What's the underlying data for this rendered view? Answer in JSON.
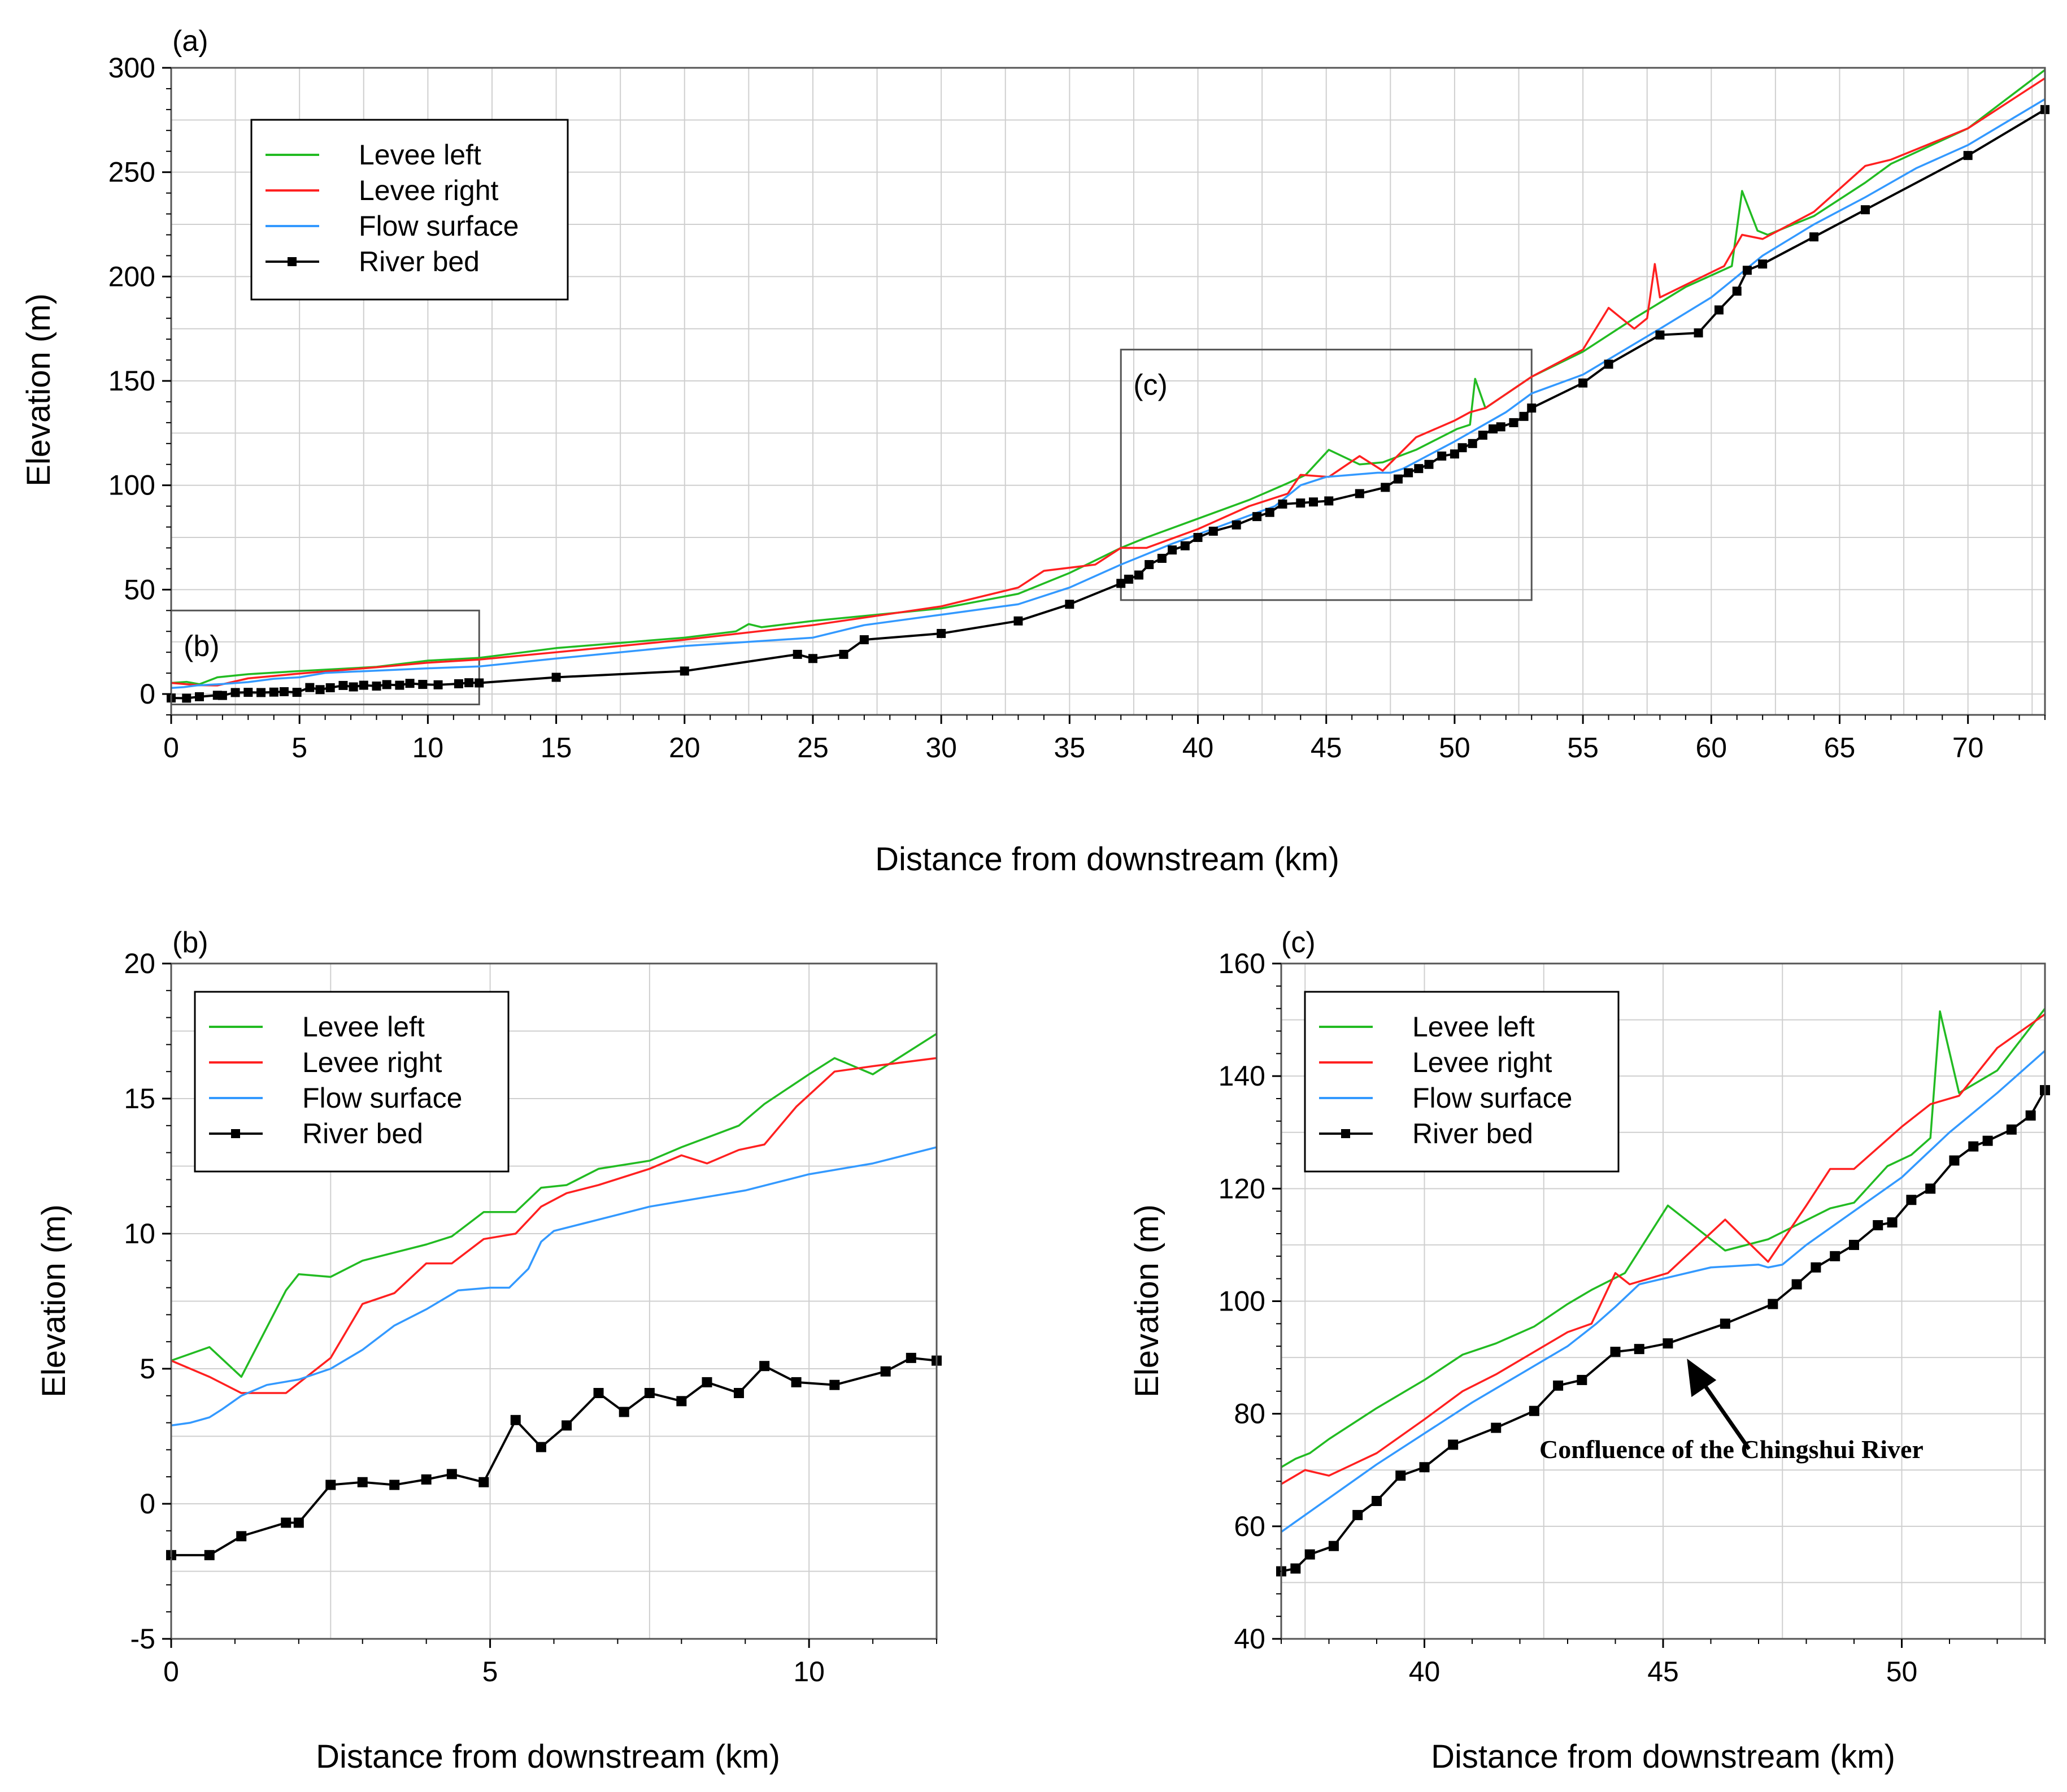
{
  "chart_data": [
    {
      "panel": "(a)",
      "type": "line",
      "xlabel": "Distance from downstream (km)",
      "ylabel": "Elevation (m)",
      "xlim": [
        0,
        73
      ],
      "ylim": [
        -10,
        300
      ],
      "xticks": [
        0,
        5,
        10,
        15,
        20,
        25,
        30,
        35,
        40,
        45,
        50,
        55,
        60,
        65,
        70
      ],
      "yticks": [
        0,
        50,
        100,
        150,
        200,
        250,
        300
      ],
      "grid": true,
      "legend_position": "top-left",
      "inset_boxes": [
        {
          "label": "(b)",
          "x_range": [
            0,
            12
          ],
          "y_range": [
            -5,
            40
          ]
        },
        {
          "label": "(c)",
          "x_range": [
            37,
            53
          ],
          "y_range": [
            45,
            165
          ]
        }
      ],
      "series": [
        {
          "name": "Levee left",
          "color": "#22bb22",
          "marker": "none",
          "x": [
            0,
            0.6,
            1.1,
            1.8,
            3,
            5,
            8,
            10,
            12,
            15,
            20,
            22,
            22.5,
            23,
            25,
            30,
            33,
            35,
            37,
            38,
            40,
            42,
            43.5,
            44.2,
            45.1,
            46.3,
            47.2,
            48.5,
            50.1,
            50.6,
            50.8,
            51.2,
            53,
            55,
            57,
            59,
            60.8,
            61.2,
            61.8,
            62.2,
            64,
            66,
            67,
            70,
            73
          ],
          "y": [
            5.3,
            5.8,
            4.7,
            8,
            9.5,
            11,
            13,
            16,
            17.3,
            22,
            27,
            30,
            33.5,
            32,
            35,
            41,
            48,
            58,
            70,
            75,
            84,
            93,
            101,
            105,
            117,
            110,
            111,
            117,
            127,
            129,
            151,
            137,
            152,
            164,
            180,
            195,
            205,
            241,
            222,
            220,
            229,
            245,
            254,
            271,
            299
          ]
        },
        {
          "name": "Levee right",
          "color": "#ff2020",
          "marker": "none",
          "x": [
            0,
            1.1,
            1.8,
            3,
            5,
            8,
            10,
            12,
            15,
            20,
            25,
            30,
            33,
            34,
            36,
            37,
            38,
            40,
            42,
            43.5,
            44,
            45.1,
            46.3,
            47.2,
            48.5,
            50,
            50.6,
            51.2,
            53,
            55,
            56,
            57,
            57.5,
            57.8,
            58,
            60.5,
            61.2,
            62,
            64,
            66,
            67,
            70,
            73
          ],
          "y": [
            5.3,
            4.2,
            4.1,
            7.5,
            9.8,
            12.8,
            15,
            16.5,
            20,
            26,
            33,
            42,
            51,
            59,
            62,
            70,
            70,
            79,
            90,
            96,
            105,
            104,
            114,
            107,
            123,
            131,
            135,
            137,
            152,
            165,
            185,
            175,
            180,
            206,
            190,
            205,
            220,
            218,
            231,
            253,
            256,
            271,
            295
          ]
        },
        {
          "name": "Flow surface",
          "color": "#3399ff",
          "marker": "none",
          "x": [
            0,
            0.5,
            1,
            2,
            3,
            4,
            5,
            6,
            8,
            10,
            12,
            15,
            20,
            25,
            27,
            30,
            33,
            35,
            37,
            39,
            41,
            43,
            44,
            45,
            46,
            47,
            47.5,
            48,
            50,
            52,
            53,
            55,
            58,
            60,
            62,
            64,
            66,
            68,
            70,
            73
          ],
          "y": [
            2.9,
            3.3,
            4.1,
            4.8,
            5.7,
            7.3,
            8,
            10.1,
            11.2,
            12.3,
            13.2,
            17,
            23,
            27,
            33,
            38,
            43,
            51,
            62,
            72,
            81,
            90,
            100,
            104,
            105,
            106,
            106,
            108,
            121,
            135,
            144,
            153,
            175,
            190,
            210,
            225,
            238,
            252,
            263,
            285
          ]
        },
        {
          "name": "River bed",
          "color": "#000000",
          "marker": "square",
          "x": [
            0,
            0.6,
            1.1,
            1.8,
            2,
            2.5,
            3,
            3.5,
            4,
            4.4,
            4.9,
            5.4,
            5.8,
            6.2,
            6.7,
            7.1,
            7.5,
            8,
            8.4,
            8.9,
            9.3,
            9.8,
            10.4,
            11.2,
            11.6,
            12,
            15,
            20,
            24.4,
            25,
            26.2,
            27,
            30,
            33,
            35,
            37,
            37.3,
            37.7,
            38.1,
            38.6,
            39,
            39.5,
            40,
            40.6,
            41.5,
            42.3,
            42.8,
            43.3,
            44,
            44.5,
            45.1,
            46.3,
            47.3,
            47.8,
            48.2,
            48.6,
            49,
            49.5,
            50,
            50.3,
            50.7,
            51.1,
            51.5,
            51.8,
            52.3,
            52.7,
            53,
            55,
            56,
            58,
            59.5,
            60.3,
            61,
            61.4,
            62,
            64,
            66,
            70,
            73
          ],
          "y": [
            -1.9,
            -2,
            -1.3,
            -0.6,
            -0.7,
            0.7,
            0.8,
            0.7,
            0.9,
            1.1,
            0.8,
            3.1,
            2.1,
            3,
            4.1,
            3.4,
            4.2,
            3.8,
            4.5,
            4.2,
            5.1,
            4.6,
            4.4,
            4.9,
            5.4,
            5.3,
            8,
            11,
            19,
            17,
            19,
            26,
            29,
            35,
            43,
            53,
            55,
            57,
            62,
            65,
            69,
            71,
            75,
            78,
            81,
            85,
            87,
            91,
            91.5,
            92,
            92.5,
            96,
            99,
            103,
            106,
            108,
            110,
            114,
            115,
            118,
            120,
            124,
            127,
            128,
            130,
            133,
            137,
            149,
            158,
            172,
            173,
            184,
            193,
            203,
            206,
            219,
            232,
            258,
            280
          ]
        }
      ]
    },
    {
      "panel": "(b)",
      "type": "line",
      "xlabel": "Distance from downstream (km)",
      "ylabel": "Elevation (m)",
      "xlim": [
        0,
        12
      ],
      "ylim": [
        -5,
        20
      ],
      "xticks": [
        0,
        5,
        10
      ],
      "yticks": [
        -5,
        0,
        5,
        10,
        15,
        20
      ],
      "grid": true,
      "legend_position": "top-left",
      "series": [
        {
          "name": "Levee left",
          "color": "#22bb22",
          "marker": "none",
          "x": [
            0,
            0.6,
            1.1,
            1.8,
            2,
            2.5,
            3,
            3.5,
            4,
            4.4,
            4.9,
            5.4,
            5.8,
            6.2,
            6.7,
            7.5,
            8,
            8.9,
            9.3,
            10,
            10.4,
            11,
            12
          ],
          "y": [
            5.3,
            5.8,
            4.7,
            7.9,
            8.5,
            8.4,
            9,
            9.3,
            9.6,
            9.9,
            10.8,
            10.8,
            11.7,
            11.8,
            12.4,
            12.7,
            13.2,
            14,
            14.8,
            15.9,
            16.5,
            15.9,
            17.4
          ]
        },
        {
          "name": "Levee right",
          "color": "#ff2020",
          "marker": "none",
          "x": [
            0,
            0.6,
            1.1,
            1.8,
            2.5,
            3,
            3.5,
            4,
            4.4,
            4.9,
            5.4,
            5.8,
            6.2,
            6.7,
            7.5,
            8,
            8.4,
            8.9,
            9.3,
            9.8,
            10.4,
            11,
            12
          ],
          "y": [
            5.3,
            4.7,
            4.1,
            4.1,
            5.4,
            7.4,
            7.8,
            8.9,
            8.9,
            9.8,
            10,
            11,
            11.5,
            11.8,
            12.4,
            12.9,
            12.6,
            13.1,
            13.3,
            14.7,
            16,
            16.2,
            16.5
          ]
        },
        {
          "name": "Flow surface",
          "color": "#3399ff",
          "marker": "none",
          "x": [
            0,
            0.3,
            0.6,
            0.8,
            1.1,
            1.5,
            2,
            2.5,
            3,
            3.5,
            4,
            4.5,
            5,
            5.3,
            5.6,
            5.8,
            6,
            6.5,
            7,
            7.5,
            8,
            8.5,
            9,
            9.5,
            10,
            11,
            12
          ],
          "y": [
            2.9,
            3,
            3.2,
            3.5,
            4,
            4.4,
            4.6,
            5,
            5.7,
            6.6,
            7.2,
            7.9,
            8,
            8,
            8.7,
            9.7,
            10.1,
            10.4,
            10.7,
            11,
            11.2,
            11.4,
            11.6,
            11.9,
            12.2,
            12.6,
            13.2
          ]
        },
        {
          "name": "River bed",
          "color": "#000000",
          "marker": "square",
          "x": [
            0,
            0.6,
            1.1,
            1.8,
            2,
            2.5,
            3,
            3.5,
            4,
            4.4,
            4.9,
            5.4,
            5.8,
            6.2,
            6.7,
            7.1,
            7.5,
            8,
            8.4,
            8.9,
            9.3,
            9.8,
            10.4,
            11.2,
            11.6,
            12
          ],
          "y": [
            -1.9,
            -1.9,
            -1.2,
            -0.7,
            -0.7,
            0.7,
            0.8,
            0.7,
            0.9,
            1.1,
            0.8,
            3.1,
            2.1,
            2.9,
            4.1,
            3.4,
            4.1,
            3.8,
            4.5,
            4.1,
            5.1,
            4.5,
            4.4,
            4.9,
            5.4,
            5.3
          ]
        }
      ]
    },
    {
      "panel": "(c)",
      "type": "line",
      "xlabel": "Distance from downstream (km)",
      "ylabel": "Elevation (m)",
      "xlim": [
        37,
        53
      ],
      "ylim": [
        40,
        160
      ],
      "xticks": [
        40,
        45,
        50
      ],
      "yticks": [
        40,
        60,
        80,
        100,
        120,
        140,
        160
      ],
      "grid": true,
      "legend_position": "top-left",
      "annotation": {
        "text": "Confluence of the Chingshui River",
        "arrow_to": [
          45.5,
          92
        ]
      },
      "series": [
        {
          "name": "Levee left",
          "color": "#22bb22",
          "marker": "none",
          "x": [
            37,
            37.3,
            37.6,
            38,
            39,
            40,
            40.8,
            41.5,
            42.3,
            43,
            43.5,
            44.2,
            45.1,
            46.3,
            47.2,
            48.5,
            49,
            49.7,
            50.2,
            50.6,
            50.8,
            51.2,
            52,
            53
          ],
          "y": [
            70.5,
            72,
            73,
            75.5,
            81,
            86,
            90.5,
            92.5,
            95.5,
            99.5,
            102,
            105,
            117,
            109,
            111,
            116.5,
            117.5,
            124,
            126,
            129,
            151.5,
            137,
            141,
            152
          ]
        },
        {
          "name": "Levee right",
          "color": "#ff2020",
          "marker": "none",
          "x": [
            37,
            37.5,
            38,
            38.5,
            39,
            40,
            40.8,
            41.5,
            42.3,
            43,
            43.5,
            44,
            44.3,
            45.1,
            46.3,
            47.2,
            48,
            48.5,
            49,
            50,
            50.6,
            51.2,
            52,
            53
          ],
          "y": [
            67.5,
            70,
            69,
            71,
            73,
            79,
            84,
            87,
            91,
            94.5,
            96,
            105,
            103,
            105,
            114.5,
            107,
            117,
            123.5,
            123.5,
            131,
            135,
            136.5,
            145,
            151
          ]
        },
        {
          "name": "Flow surface",
          "color": "#3399ff",
          "marker": "none",
          "x": [
            37,
            37.5,
            38,
            39,
            40,
            41,
            42,
            43,
            43.6,
            44,
            44.5,
            45,
            46,
            47,
            47.2,
            47.5,
            48,
            48.5,
            49,
            50,
            50.5,
            51,
            52,
            53
          ],
          "y": [
            59,
            62,
            65,
            71,
            76.5,
            82,
            87,
            92,
            96,
            99,
            103,
            104,
            106,
            106.5,
            106,
            106.5,
            110,
            113,
            116,
            122,
            126,
            130,
            137,
            144.5
          ]
        },
        {
          "name": "River bed",
          "color": "#000000",
          "marker": "square",
          "x": [
            37,
            37.3,
            37.6,
            38.1,
            38.6,
            39,
            39.5,
            40,
            40.6,
            41.5,
            42.3,
            42.8,
            43.3,
            44,
            44.5,
            45.1,
            46.3,
            47.3,
            47.8,
            48.2,
            48.6,
            49,
            49.5,
            49.8,
            50.2,
            50.6,
            51.1,
            51.5,
            51.8,
            52.3,
            52.7,
            53
          ],
          "y": [
            52,
            52.5,
            55,
            56.5,
            62,
            64.5,
            69,
            70.5,
            74.5,
            77.5,
            80.5,
            85,
            86,
            91,
            91.5,
            92.5,
            96,
            99.5,
            103,
            106,
            108,
            110,
            113.5,
            114,
            118,
            120,
            125,
            127.5,
            128.5,
            130.5,
            133,
            137.5
          ]
        }
      ]
    }
  ]
}
